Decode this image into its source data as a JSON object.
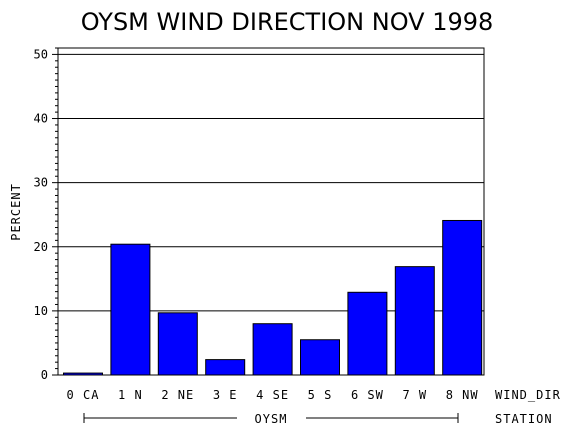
{
  "chart_data": {
    "type": "bar",
    "title": "OYSM WIND DIRECTION NOV 1998",
    "ylabel": "PERCENT",
    "x_axis_label": "WIND_DIR",
    "group_axis_label": "STATION",
    "group_name": "OYSM",
    "ylim": [
      0,
      51
    ],
    "y_ticks": [
      0,
      10,
      20,
      30,
      40,
      50
    ],
    "categories": [
      "0 CA",
      "1 N",
      "2 NE",
      "3 E",
      "4 SE",
      "5 S",
      "6 SW",
      "7 W",
      "8 NW"
    ],
    "values": [
      0.3,
      20.4,
      9.7,
      2.4,
      8.0,
      5.5,
      12.9,
      16.9,
      24.1
    ],
    "bar_color": "#0000ff",
    "grid": "horizontal"
  }
}
